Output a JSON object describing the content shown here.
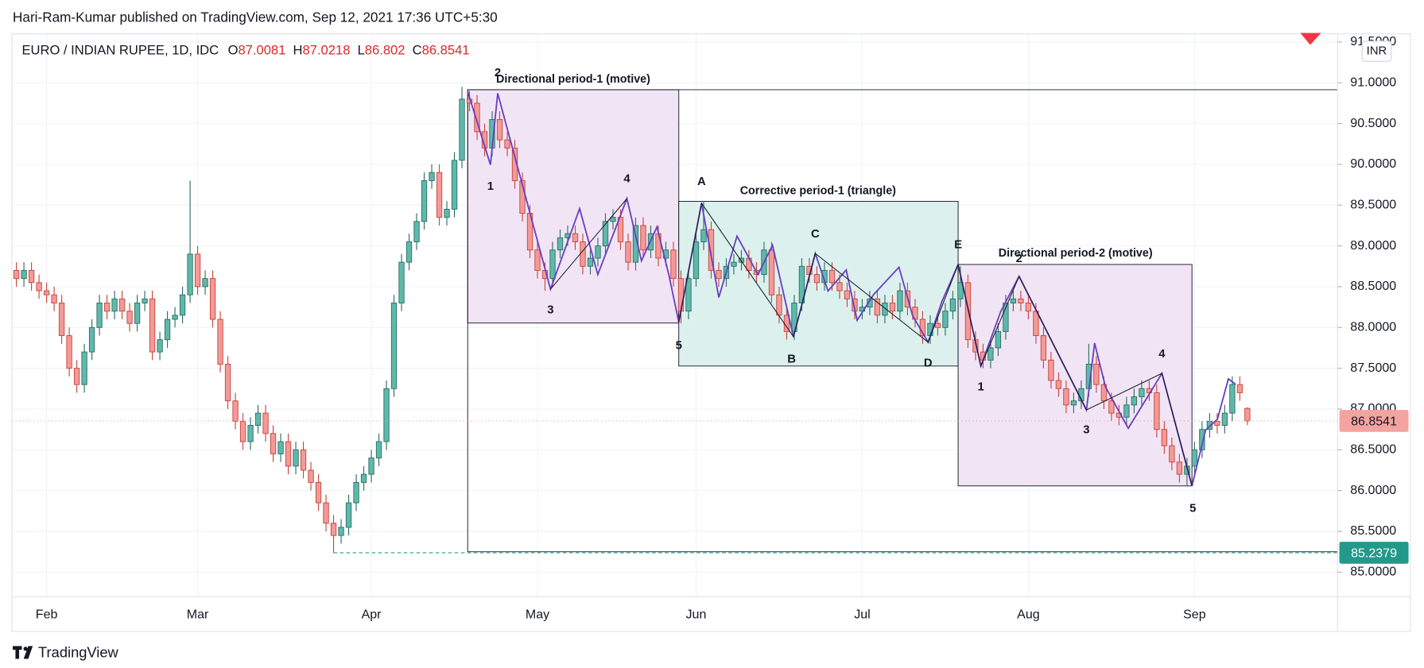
{
  "header": {
    "publisher": "Hari-Ram-Kumar published on TradingView.com, Sep 12, 2021 17:36 UTC+5:30",
    "brand": "TradingView"
  },
  "chart_data": {
    "type": "candlestick",
    "symbol": "EURO / INDIAN RUPEE, 1D, IDC",
    "ohlc_letters": [
      "O",
      "H",
      "L",
      "C"
    ],
    "currency": "INR",
    "up_color": "#5fb9ab",
    "up_border": "#2e6f66",
    "down_color": "#f39a97",
    "down_border": "#c8453f",
    "grid": true,
    "ylim": [
      84.7,
      91.6
    ],
    "yticks": [
      {
        "value": 85,
        "label": "85.0000"
      },
      {
        "value": 85.5,
        "label": "85.5000"
      },
      {
        "value": 86,
        "label": "86.0000"
      },
      {
        "value": 86.5,
        "label": "86.5000"
      },
      {
        "value": 87,
        "label": "87.0000"
      },
      {
        "value": 87.5,
        "label": "87.5000"
      },
      {
        "value": 88,
        "label": "88.0000"
      },
      {
        "value": 88.5,
        "label": "88.5000"
      },
      {
        "value": 89,
        "label": "89.0000"
      },
      {
        "value": 89.5,
        "label": "89.5000"
      },
      {
        "value": 90,
        "label": "90.0000"
      },
      {
        "value": 90.5,
        "label": "90.5000"
      },
      {
        "value": 91,
        "label": "91.0000"
      },
      {
        "value": 91.5,
        "label": "91.5000"
      }
    ],
    "categories": [
      null,
      null,
      null,
      null,
      "Feb",
      null,
      null,
      null,
      null,
      null,
      null,
      null,
      null,
      null,
      null,
      null,
      null,
      null,
      null,
      null,
      null,
      null,
      null,
      null,
      "Mar",
      null,
      null,
      null,
      null,
      null,
      null,
      null,
      null,
      null,
      null,
      null,
      null,
      null,
      null,
      null,
      null,
      null,
      null,
      null,
      null,
      null,
      null,
      "Apr",
      null,
      null,
      null,
      null,
      null,
      null,
      null,
      null,
      null,
      null,
      null,
      null,
      null,
      null,
      null,
      null,
      null,
      null,
      null,
      null,
      null,
      "May",
      null,
      null,
      null,
      null,
      null,
      null,
      null,
      null,
      null,
      null,
      null,
      null,
      null,
      null,
      null,
      null,
      null,
      null,
      null,
      null,
      "Jun",
      null,
      null,
      null,
      null,
      null,
      null,
      null,
      null,
      null,
      null,
      null,
      null,
      null,
      null,
      null,
      null,
      null,
      null,
      null,
      null,
      null,
      "Jul",
      null,
      null,
      null,
      null,
      null,
      null,
      null,
      null,
      null,
      null,
      null,
      null,
      null,
      null,
      null,
      null,
      null,
      null,
      null,
      null,
      null,
      "Aug",
      null,
      null,
      null,
      null,
      null,
      null,
      null,
      null,
      null,
      null,
      null,
      null,
      null,
      null,
      null,
      null,
      null,
      null,
      null,
      null,
      null,
      "Sep",
      null,
      null,
      null,
      null,
      null,
      null,
      null
    ],
    "open": [
      88.7,
      88.6,
      88.7,
      88.55,
      88.45,
      88.4,
      88.3,
      87.9,
      87.5,
      87.3,
      87.7,
      88.0,
      88.3,
      88.2,
      88.35,
      88.2,
      88.05,
      88.3,
      88.35,
      87.7,
      87.85,
      88.1,
      88.15,
      88.4,
      88.9,
      88.5,
      88.6,
      88.1,
      87.55,
      87.1,
      86.85,
      86.6,
      86.8,
      86.95,
      86.7,
      86.45,
      86.6,
      86.3,
      86.5,
      86.25,
      86.1,
      85.85,
      85.6,
      85.45,
      85.55,
      85.85,
      86.1,
      86.2,
      86.4,
      86.6,
      87.25,
      88.3,
      88.8,
      89.05,
      89.3,
      89.8,
      89.9,
      89.35,
      89.45,
      90.05,
      90.8,
      90.75,
      90.4,
      90.2,
      90.55,
      90.3,
      90.2,
      89.8,
      89.4,
      88.95,
      88.7,
      88.6,
      88.95,
      89.1,
      89.15,
      89.05,
      88.75,
      88.85,
      89.0,
      89.3,
      89.35,
      89.05,
      88.8,
      89.25,
      88.95,
      89.15,
      88.85,
      88.95,
      88.6,
      88.2,
      88.6,
      89.05,
      89.2,
      88.7,
      88.6,
      88.75,
      88.8,
      88.85,
      88.7,
      88.65,
      88.95,
      88.4,
      88.15,
      87.95,
      88.3,
      88.75,
      88.65,
      88.55,
      88.7,
      88.55,
      88.45,
      88.35,
      88.2,
      88.25,
      88.35,
      88.15,
      88.3,
      88.2,
      88.45,
      88.25,
      88.1,
      87.9,
      88.05,
      88.0,
      88.2,
      88.35,
      88.55,
      87.85,
      87.7,
      87.6,
      87.75,
      87.95,
      88.3,
      88.35,
      88.3,
      88.2,
      87.9,
      87.6,
      87.35,
      87.25,
      87.05,
      87.1,
      87.25,
      87.55,
      87.3,
      87.1,
      86.95,
      86.9,
      87.05,
      87.15,
      87.25,
      87.2,
      86.75,
      86.55,
      86.35,
      86.2,
      86.3,
      86.5,
      86.75,
      86.85,
      86.8,
      86.95,
      87.3,
      87.0081
    ],
    "high": [
      88.8,
      88.8,
      88.8,
      88.65,
      88.55,
      88.5,
      88.4,
      88.0,
      87.6,
      87.8,
      88.1,
      88.4,
      88.4,
      88.45,
      88.45,
      88.3,
      88.4,
      88.45,
      88.45,
      87.95,
      88.2,
      88.25,
      88.5,
      89.8,
      89.0,
      88.7,
      88.7,
      88.2,
      87.65,
      87.2,
      86.95,
      86.9,
      87.05,
      87.05,
      86.8,
      86.7,
      86.7,
      86.6,
      86.6,
      86.35,
      86.2,
      85.95,
      85.7,
      85.65,
      85.95,
      86.2,
      86.3,
      86.5,
      86.7,
      87.35,
      88.4,
      88.9,
      89.15,
      89.4,
      89.9,
      90.0,
      90.0,
      89.55,
      90.15,
      90.95,
      90.9,
      90.85,
      90.5,
      90.65,
      90.65,
      90.4,
      90.3,
      89.9,
      89.5,
      89.05,
      88.8,
      89.05,
      89.2,
      89.25,
      89.25,
      89.15,
      88.95,
      89.1,
      89.4,
      89.45,
      89.45,
      89.15,
      89.35,
      89.35,
      89.25,
      89.25,
      89.05,
      89.05,
      88.7,
      88.7,
      89.15,
      89.55,
      89.3,
      88.8,
      88.85,
      88.9,
      88.95,
      88.95,
      88.8,
      89.05,
      89.05,
      88.5,
      88.25,
      88.4,
      88.85,
      88.85,
      88.75,
      88.8,
      88.8,
      88.65,
      88.55,
      88.45,
      88.35,
      88.45,
      88.45,
      88.4,
      88.4,
      88.55,
      88.55,
      88.35,
      88.2,
      88.15,
      88.15,
      88.3,
      88.45,
      88.75,
      88.65,
      87.95,
      87.8,
      87.85,
      88.05,
      88.4,
      88.45,
      88.45,
      88.4,
      88.3,
      88.0,
      87.7,
      87.45,
      87.35,
      87.2,
      87.35,
      87.8,
      87.65,
      87.4,
      87.2,
      87.05,
      87.15,
      87.25,
      87.35,
      87.35,
      87.3,
      86.85,
      86.65,
      86.45,
      86.4,
      86.6,
      86.85,
      86.95,
      86.95,
      87.05,
      87.4,
      87.4,
      87.0218
    ],
    "low": [
      88.5,
      88.5,
      88.45,
      88.35,
      88.3,
      88.2,
      87.8,
      87.4,
      87.2,
      87.2,
      87.6,
      87.9,
      88.1,
      88.1,
      88.1,
      87.95,
      87.95,
      88.2,
      87.6,
      87.6,
      87.75,
      88.0,
      88.05,
      88.3,
      88.4,
      88.4,
      88.0,
      87.45,
      87.0,
      86.75,
      86.5,
      86.5,
      86.7,
      86.6,
      86.35,
      86.35,
      86.2,
      86.2,
      86.15,
      86.0,
      85.75,
      85.5,
      85.2379,
      85.35,
      85.45,
      85.75,
      86.0,
      86.1,
      86.3,
      86.5,
      87.15,
      88.2,
      88.7,
      88.95,
      89.2,
      89.7,
      89.25,
      89.25,
      89.35,
      89.95,
      90.65,
      90.3,
      90.1,
      90.1,
      90.2,
      90.1,
      89.7,
      89.3,
      88.85,
      88.6,
      88.45,
      88.5,
      88.85,
      89.0,
      88.95,
      88.65,
      88.65,
      88.75,
      88.9,
      89.2,
      88.95,
      88.7,
      88.7,
      88.85,
      88.85,
      88.75,
      88.75,
      88.5,
      88.05,
      88.1,
      88.5,
      88.95,
      88.6,
      88.5,
      88.5,
      88.65,
      88.7,
      88.6,
      88.55,
      88.55,
      88.3,
      88.05,
      87.85,
      87.85,
      88.2,
      88.55,
      88.45,
      88.45,
      88.45,
      88.35,
      88.25,
      88.1,
      88.1,
      88.15,
      88.05,
      88.05,
      88.1,
      88.1,
      88.15,
      88.0,
      87.8,
      87.8,
      87.9,
      87.9,
      88.1,
      88.25,
      87.75,
      87.6,
      87.5,
      87.5,
      87.65,
      87.85,
      88.2,
      88.2,
      88.1,
      87.8,
      87.5,
      87.25,
      87.15,
      86.95,
      86.95,
      87.0,
      87.15,
      87.2,
      87.0,
      86.85,
      86.8,
      86.8,
      86.95,
      87.05,
      87.1,
      86.65,
      86.45,
      86.25,
      86.1,
      86.05,
      86.2,
      86.4,
      86.65,
      86.7,
      86.7,
      86.85,
      87.1,
      86.802
    ],
    "close": [
      88.6,
      88.7,
      88.55,
      88.45,
      88.4,
      88.3,
      87.9,
      87.5,
      87.3,
      87.7,
      88.0,
      88.3,
      88.2,
      88.35,
      88.2,
      88.05,
      88.3,
      88.35,
      87.7,
      87.85,
      88.1,
      88.15,
      88.4,
      88.9,
      88.5,
      88.6,
      88.1,
      87.55,
      87.1,
      86.85,
      86.6,
      86.8,
      86.95,
      86.7,
      86.45,
      86.6,
      86.3,
      86.5,
      86.25,
      86.1,
      85.85,
      85.6,
      85.45,
      85.55,
      85.85,
      86.1,
      86.2,
      86.4,
      86.6,
      87.25,
      88.3,
      88.8,
      89.05,
      89.3,
      89.8,
      89.9,
      89.35,
      89.45,
      90.05,
      90.8,
      90.75,
      90.4,
      90.2,
      90.55,
      90.3,
      90.2,
      89.8,
      89.4,
      88.95,
      88.7,
      88.6,
      88.95,
      89.1,
      89.15,
      89.05,
      88.75,
      88.85,
      89.0,
      89.3,
      89.35,
      89.05,
      88.8,
      89.25,
      88.95,
      89.15,
      88.85,
      88.95,
      88.6,
      88.2,
      88.6,
      89.05,
      89.2,
      88.7,
      88.6,
      88.75,
      88.8,
      88.85,
      88.7,
      88.65,
      88.95,
      88.4,
      88.15,
      87.95,
      88.3,
      88.75,
      88.65,
      88.55,
      88.7,
      88.55,
      88.45,
      88.35,
      88.2,
      88.25,
      88.35,
      88.15,
      88.3,
      88.2,
      88.45,
      88.25,
      88.1,
      87.9,
      88.05,
      88.0,
      88.2,
      88.35,
      88.55,
      87.85,
      87.7,
      87.6,
      87.75,
      87.95,
      88.3,
      88.35,
      88.3,
      88.2,
      87.9,
      87.6,
      87.35,
      87.25,
      87.05,
      87.1,
      87.25,
      87.55,
      87.3,
      87.1,
      86.95,
      86.9,
      87.05,
      87.15,
      87.25,
      87.2,
      86.75,
      86.55,
      86.35,
      86.2,
      86.3,
      86.5,
      86.75,
      86.85,
      86.8,
      86.95,
      87.3,
      87.2,
      86.8541
    ],
    "annotations": [
      "Directional period-1 (motive)",
      "Corrective period-1 (triangle)",
      "Directional period-2 (motive)"
    ],
    "wave_labels": [
      "2",
      "1",
      "3",
      "4",
      "5",
      "A",
      "B",
      "C",
      "D",
      "E",
      "1",
      "2",
      "3",
      "4",
      "5"
    ]
  }
}
